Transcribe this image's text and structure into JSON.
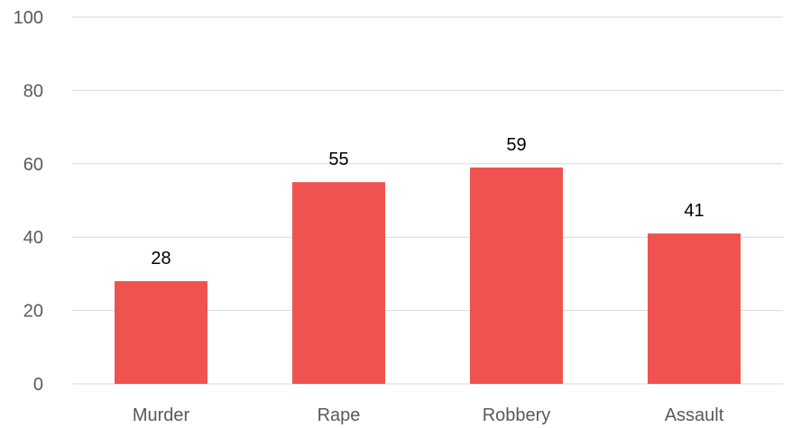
{
  "chart_data": {
    "type": "bar",
    "title": "",
    "xlabel": "",
    "ylabel": "",
    "categories": [
      "Murder",
      "Rape",
      "Robbery",
      "Assault"
    ],
    "values": [
      28,
      55,
      59,
      41
    ],
    "data_labels": [
      "28",
      "55",
      "59",
      "41"
    ],
    "ylim": [
      0,
      100
    ],
    "yticks": [
      0,
      20,
      40,
      60,
      80,
      100
    ],
    "ytick_labels": [
      "0",
      "20",
      "40",
      "60",
      "80",
      "100"
    ],
    "grid": true,
    "legend": "none",
    "bar_color": "#ef5350",
    "grid_color": "#d9d9d9",
    "tick_label_color": "#595959",
    "data_label_color": "#000000"
  }
}
